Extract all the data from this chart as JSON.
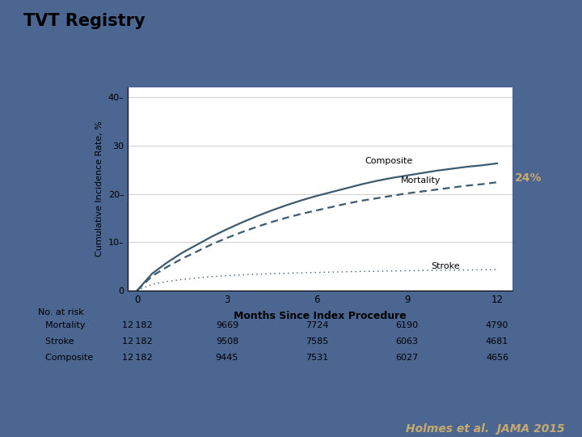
{
  "title": "TVT Registry",
  "background_color": "#4a6691",
  "panel_color": "#ffffff",
  "xlabel": "Months Since Index Procedure",
  "ylabel": "Cumulative Incidence Rate, %",
  "xticks": [
    0,
    3,
    6,
    9,
    12
  ],
  "yticks": [
    0,
    10,
    20,
    30,
    40
  ],
  "ylim": [
    0,
    42
  ],
  "xlim": [
    -0.3,
    12.5
  ],
  "curve_color": "#3d5a6e",
  "annotation_24_color": "#c8a96e",
  "annotation_24_text": "24%",
  "composite_label": "Composite",
  "mortality_label": "Mortality",
  "stroke_label": "Stroke",
  "composite_x": [
    0,
    0.5,
    1,
    1.5,
    2,
    2.5,
    3,
    3.5,
    4,
    4.5,
    5,
    5.5,
    6,
    6.5,
    7,
    7.5,
    8,
    8.5,
    9,
    9.5,
    10,
    10.5,
    11,
    11.5,
    12
  ],
  "composite_y": [
    0,
    3.5,
    5.8,
    7.8,
    9.5,
    11.2,
    12.7,
    14.1,
    15.4,
    16.6,
    17.7,
    18.7,
    19.6,
    20.4,
    21.2,
    22.0,
    22.7,
    23.3,
    23.8,
    24.3,
    24.8,
    25.2,
    25.6,
    25.9,
    26.3
  ],
  "mortality_x": [
    0,
    0.5,
    1,
    1.5,
    2,
    2.5,
    3,
    3.5,
    4,
    4.5,
    5,
    5.5,
    6,
    6.5,
    7,
    7.5,
    8,
    8.5,
    9,
    9.5,
    10,
    10.5,
    11,
    11.5,
    12
  ],
  "mortality_y": [
    0,
    3.0,
    4.9,
    6.6,
    8.1,
    9.6,
    10.9,
    12.1,
    13.2,
    14.2,
    15.1,
    15.9,
    16.6,
    17.3,
    18.0,
    18.6,
    19.1,
    19.6,
    20.1,
    20.5,
    20.9,
    21.3,
    21.7,
    22.0,
    22.4
  ],
  "stroke_x": [
    0,
    0.5,
    1,
    1.5,
    2,
    2.5,
    3,
    3.5,
    4,
    4.5,
    5,
    5.5,
    6,
    6.5,
    7,
    7.5,
    8,
    8.5,
    9,
    9.5,
    10,
    10.5,
    11,
    11.5,
    12
  ],
  "stroke_y": [
    0,
    1.3,
    1.9,
    2.3,
    2.6,
    2.9,
    3.1,
    3.25,
    3.38,
    3.5,
    3.6,
    3.68,
    3.76,
    3.83,
    3.9,
    3.96,
    4.01,
    4.06,
    4.11,
    4.15,
    4.19,
    4.23,
    4.27,
    4.31,
    4.35
  ],
  "no_at_risk_header": "No. at risk",
  "risk_rows": [
    {
      "label": "  Mortality",
      "values": [
        "12 182",
        "9669",
        "7724",
        "6190",
        "4790"
      ]
    },
    {
      "label": "  Stroke",
      "values": [
        "12 182",
        "9508",
        "7585",
        "6063",
        "4681"
      ]
    },
    {
      "label": "  Composite",
      "values": [
        "12 182",
        "9445",
        "7531",
        "6027",
        "4656"
      ]
    }
  ],
  "reference": "Holmes et al.  JAMA 2015",
  "ytick_labels": [
    "0",
    "10–",
    "20–",
    "30",
    "40–"
  ]
}
